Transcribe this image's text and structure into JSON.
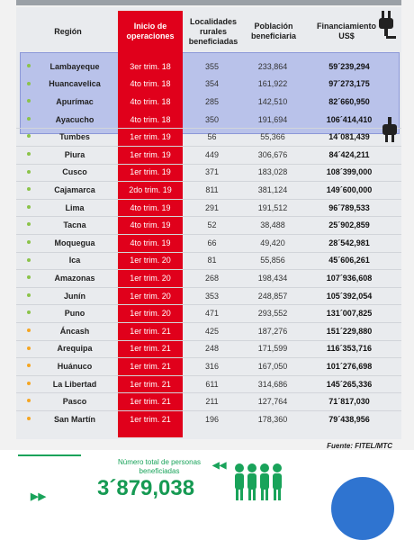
{
  "table": {
    "headers": {
      "region": "Región",
      "start": "Inicio de\noperaciones",
      "localities": "Localidades\nrurales\nbeneficiadas",
      "population": "Población\nbeneficiaria",
      "financing": "Financiamiento\nUS$"
    },
    "rows": [
      {
        "region": "Lambayeque",
        "start": "3er trim. 18",
        "localities": "355",
        "population": "233,864",
        "financing": "59´239,294",
        "dot": "#8bc34a",
        "highlight": true
      },
      {
        "region": "Huancavelica",
        "start": "4to trim. 18",
        "localities": "354",
        "population": "161,922",
        "financing": "97´273,175",
        "dot": "#8bc34a",
        "highlight": true
      },
      {
        "region": "Apurímac",
        "start": "4to trim. 18",
        "localities": "285",
        "population": "142,510",
        "financing": "82´660,950",
        "dot": "#8bc34a",
        "highlight": true
      },
      {
        "region": "Ayacucho",
        "start": "4to trim. 18",
        "localities": "350",
        "population": "191,694",
        "financing": "106´414,410",
        "dot": "#8bc34a",
        "highlight": true
      },
      {
        "region": "Tumbes",
        "start": "1er trim. 19",
        "localities": "56",
        "population": "55,366",
        "financing": "14´081,439",
        "dot": "#8bc34a",
        "highlight": false
      },
      {
        "region": "Piura",
        "start": "1er trim. 19",
        "localities": "449",
        "population": "306,676",
        "financing": "84´424,211",
        "dot": "#8bc34a",
        "highlight": false
      },
      {
        "region": "Cusco",
        "start": "1er trim. 19",
        "localities": "371",
        "population": "183,028",
        "financing": "108´399,000",
        "dot": "#8bc34a",
        "highlight": false
      },
      {
        "region": "Cajamarca",
        "start": "2do trim. 19",
        "localities": "811",
        "population": "381,124",
        "financing": "149´600,000",
        "dot": "#8bc34a",
        "highlight": false
      },
      {
        "region": "Lima",
        "start": "4to trim. 19",
        "localities": "291",
        "population": "191,512",
        "financing": "96´789,533",
        "dot": "#8bc34a",
        "highlight": false
      },
      {
        "region": "Tacna",
        "start": "4to trim. 19",
        "localities": "52",
        "population": "38,488",
        "financing": "25´902,859",
        "dot": "#8bc34a",
        "highlight": false
      },
      {
        "region": "Moquegua",
        "start": "4to trim. 19",
        "localities": "66",
        "population": "49,420",
        "financing": "28´542,981",
        "dot": "#8bc34a",
        "highlight": false
      },
      {
        "region": "Ica",
        "start": "1er trim. 20",
        "localities": "81",
        "population": "55,856",
        "financing": "45´606,261",
        "dot": "#8bc34a",
        "highlight": false
      },
      {
        "region": "Amazonas",
        "start": "1er trim. 20",
        "localities": "268",
        "population": "198,434",
        "financing": "107´936,608",
        "dot": "#8bc34a",
        "highlight": false
      },
      {
        "region": "Junín",
        "start": "1er trim. 20",
        "localities": "353",
        "population": "248,857",
        "financing": "105´392,054",
        "dot": "#8bc34a",
        "highlight": false
      },
      {
        "region": "Puno",
        "start": "1er trim. 20",
        "localities": "471",
        "population": "293,552",
        "financing": "131´007,825",
        "dot": "#8bc34a",
        "highlight": false
      },
      {
        "region": "Áncash",
        "start": "1er trim. 21",
        "localities": "425",
        "population": "187,276",
        "financing": "151´229,880",
        "dot": "#f5a623",
        "highlight": false
      },
      {
        "region": "Arequipa",
        "start": "1er trim. 21",
        "localities": "248",
        "population": "171,599",
        "financing": "116´353,716",
        "dot": "#f5a623",
        "highlight": false
      },
      {
        "region": "Huánuco",
        "start": "1er trim. 21",
        "localities": "316",
        "population": "167,050",
        "financing": "101´276,698",
        "dot": "#f5a623",
        "highlight": false
      },
      {
        "region": "La Libertad",
        "start": "1er trim. 21",
        "localities": "611",
        "population": "314,686",
        "financing": "145´265,336",
        "dot": "#f5a623",
        "highlight": false
      },
      {
        "region": "Pasco",
        "start": "1er trim. 21",
        "localities": "211",
        "population": "127,764",
        "financing": "71´817,030",
        "dot": "#f5a623",
        "highlight": false
      },
      {
        "region": "San Martín",
        "start": "1er trim. 21",
        "localities": "196",
        "population": "178,360",
        "financing": "79´438,956",
        "dot": "#f5a623",
        "highlight": false
      }
    ]
  },
  "source": "Fuente: FITEL/MTC",
  "total": {
    "label": "Número total de personas beneficiadas",
    "value": "3´879,038"
  },
  "colors": {
    "accent_red": "#e0001b",
    "highlight": "#b9c2ea",
    "green": "#19a35a",
    "blue_circle": "#2f74d0"
  },
  "icons": [
    "plug-icon",
    "plug-icon",
    "people-group-icon",
    "double-chevron-right-icon",
    "double-chevron-left-icon"
  ]
}
